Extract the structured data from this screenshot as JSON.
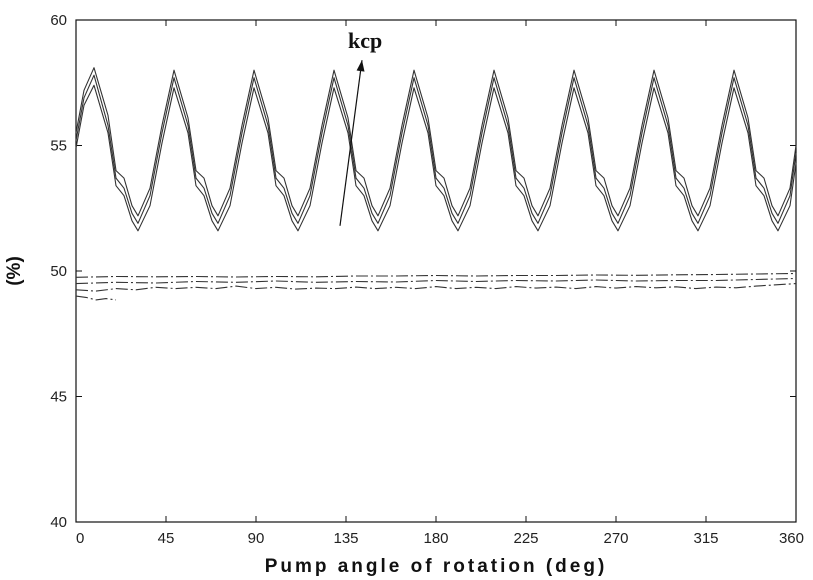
{
  "chart_data": {
    "type": "line",
    "title": "",
    "xlabel": "Pump angle of rotation (deg)",
    "ylabel": "(%)",
    "xlim": [
      0,
      360
    ],
    "ylim": [
      40,
      60
    ],
    "xticks": [
      0,
      45,
      90,
      135,
      180,
      225,
      270,
      315,
      360
    ],
    "yticks": [
      40,
      45,
      50,
      55,
      60
    ],
    "xtick_labels": [
      "0",
      "45",
      "90",
      "135",
      "180",
      "225",
      "270",
      "315",
      "360"
    ],
    "ytick_labels": [
      "40",
      "45",
      "50",
      "55",
      "60"
    ],
    "grid": false,
    "legend": "none",
    "annotation": {
      "text": "kcp",
      "arrow_from": [
        132,
        51.8
      ],
      "arrow_to": [
        143,
        58.4
      ]
    },
    "series": [
      {
        "style": "solid",
        "x": [
          0,
          4,
          9,
          16,
          20,
          24,
          28,
          31,
          37,
          43,
          49,
          56,
          60,
          64,
          68,
          71,
          77,
          83,
          89,
          96,
          100,
          104,
          108,
          111,
          117,
          123,
          129,
          136,
          140,
          144,
          148,
          151,
          157,
          163,
          169,
          176,
          180,
          184,
          188,
          191,
          197,
          203,
          209,
          216,
          220,
          224,
          228,
          231,
          237,
          243,
          249,
          256,
          260,
          264,
          268,
          271,
          277,
          283,
          289,
          296,
          300,
          304,
          308,
          311,
          317,
          323,
          329,
          336,
          340,
          344,
          348,
          351,
          357,
          360
        ],
        "values": [
          55.5,
          57.2,
          58.1,
          56.2,
          54.0,
          53.7,
          52.6,
          52.2,
          53.3,
          55.8,
          58.0,
          56.1,
          54.0,
          53.7,
          52.6,
          52.2,
          53.3,
          55.8,
          58.0,
          56.1,
          54.0,
          53.7,
          52.6,
          52.2,
          53.3,
          55.8,
          58.0,
          56.1,
          54.0,
          53.7,
          52.6,
          52.2,
          53.3,
          55.8,
          58.0,
          56.1,
          54.0,
          53.7,
          52.6,
          52.2,
          53.3,
          55.8,
          58.0,
          56.1,
          54.0,
          53.7,
          52.6,
          52.2,
          53.3,
          55.8,
          58.0,
          56.1,
          54.0,
          53.7,
          52.6,
          52.2,
          53.3,
          55.8,
          58.0,
          56.1,
          54.0,
          53.7,
          52.6,
          52.2,
          53.3,
          55.8,
          58.0,
          56.1,
          54.0,
          53.7,
          52.6,
          52.2,
          53.3,
          55.0
        ]
      },
      {
        "style": "solid",
        "x": [
          0,
          4,
          9,
          16,
          20,
          24,
          28,
          31,
          37,
          43,
          49,
          56,
          60,
          64,
          68,
          71,
          77,
          83,
          89,
          96,
          100,
          104,
          108,
          111,
          117,
          123,
          129,
          136,
          140,
          144,
          148,
          151,
          157,
          163,
          169,
          176,
          180,
          184,
          188,
          191,
          197,
          203,
          209,
          216,
          220,
          224,
          228,
          231,
          237,
          243,
          249,
          256,
          260,
          264,
          268,
          271,
          277,
          283,
          289,
          296,
          300,
          304,
          308,
          311,
          317,
          323,
          329,
          336,
          340,
          344,
          348,
          351,
          357,
          360
        ],
        "values": [
          55.2,
          56.9,
          57.8,
          55.8,
          53.7,
          53.3,
          52.3,
          51.9,
          53.0,
          55.5,
          57.7,
          55.8,
          53.7,
          53.3,
          52.3,
          51.9,
          53.0,
          55.5,
          57.7,
          55.8,
          53.7,
          53.3,
          52.3,
          51.9,
          53.0,
          55.5,
          57.7,
          55.8,
          53.7,
          53.3,
          52.3,
          51.9,
          53.0,
          55.5,
          57.7,
          55.8,
          53.7,
          53.3,
          52.3,
          51.9,
          53.0,
          55.5,
          57.7,
          55.8,
          53.7,
          53.3,
          52.3,
          51.9,
          53.0,
          55.5,
          57.7,
          55.8,
          53.7,
          53.3,
          52.3,
          51.9,
          53.0,
          55.5,
          57.7,
          55.8,
          53.7,
          53.3,
          52.3,
          51.9,
          53.0,
          55.5,
          57.7,
          55.8,
          53.7,
          53.3,
          52.3,
          51.9,
          53.0,
          54.7
        ]
      },
      {
        "style": "solid",
        "x": [
          0,
          4,
          9,
          16,
          20,
          24,
          28,
          31,
          37,
          43,
          49,
          56,
          60,
          64,
          68,
          71,
          77,
          83,
          89,
          96,
          100,
          104,
          108,
          111,
          117,
          123,
          129,
          136,
          140,
          144,
          148,
          151,
          157,
          163,
          169,
          176,
          180,
          184,
          188,
          191,
          197,
          203,
          209,
          216,
          220,
          224,
          228,
          231,
          237,
          243,
          249,
          256,
          260,
          264,
          268,
          271,
          277,
          283,
          289,
          296,
          300,
          304,
          308,
          311,
          317,
          323,
          329,
          336,
          340,
          344,
          348,
          351,
          357,
          360
        ],
        "values": [
          54.9,
          56.6,
          57.4,
          55.5,
          53.4,
          53.0,
          52.0,
          51.6,
          52.6,
          55.1,
          57.3,
          55.5,
          53.4,
          53.0,
          52.0,
          51.6,
          52.6,
          55.1,
          57.3,
          55.5,
          53.4,
          53.0,
          52.0,
          51.6,
          52.6,
          55.1,
          57.3,
          55.5,
          53.4,
          53.0,
          52.0,
          51.6,
          52.6,
          55.1,
          57.3,
          55.5,
          53.4,
          53.0,
          52.0,
          51.6,
          52.6,
          55.1,
          57.3,
          55.5,
          53.4,
          53.0,
          52.0,
          51.6,
          52.6,
          55.1,
          57.3,
          55.5,
          53.4,
          53.0,
          52.0,
          51.6,
          52.6,
          55.1,
          57.3,
          55.5,
          53.4,
          53.0,
          52.0,
          51.6,
          52.6,
          55.1,
          57.3,
          55.5,
          53.4,
          53.0,
          52.0,
          51.6,
          52.6,
          54.3
        ]
      },
      {
        "style": "dash-dot",
        "x": [
          0,
          20,
          40,
          60,
          80,
          100,
          120,
          140,
          160,
          180,
          200,
          220,
          240,
          260,
          280,
          300,
          320,
          340,
          360
        ],
        "values": [
          49.75,
          49.78,
          49.77,
          49.78,
          49.76,
          49.78,
          49.77,
          49.8,
          49.8,
          49.82,
          49.8,
          49.82,
          49.82,
          49.84,
          49.83,
          49.85,
          49.86,
          49.88,
          49.9
        ]
      },
      {
        "style": "dash-dot",
        "x": [
          0,
          20,
          40,
          60,
          80,
          100,
          120,
          140,
          160,
          180,
          200,
          220,
          240,
          260,
          280,
          300,
          320,
          340,
          360
        ],
        "values": [
          49.5,
          49.55,
          49.52,
          49.58,
          49.55,
          49.6,
          49.55,
          49.58,
          49.56,
          49.62,
          49.58,
          49.62,
          49.6,
          49.64,
          49.6,
          49.62,
          49.62,
          49.66,
          49.7
        ]
      },
      {
        "style": "dash-dot",
        "x": [
          0,
          10,
          20,
          30,
          40,
          50,
          60,
          70,
          80,
          90,
          100,
          110,
          120,
          130,
          140,
          150,
          160,
          170,
          180,
          190,
          200,
          210,
          220,
          230,
          240,
          250,
          260,
          270,
          280,
          290,
          300,
          310,
          320,
          330,
          340,
          350,
          360
        ],
        "values": [
          49.25,
          49.2,
          49.3,
          49.25,
          49.35,
          49.3,
          49.35,
          49.3,
          49.4,
          49.3,
          49.35,
          49.28,
          49.32,
          49.3,
          49.36,
          49.3,
          49.35,
          49.3,
          49.38,
          49.3,
          49.35,
          49.3,
          49.38,
          49.32,
          49.36,
          49.3,
          49.38,
          49.32,
          49.38,
          49.33,
          49.37,
          49.3,
          49.36,
          49.33,
          49.4,
          49.45,
          49.5
        ]
      },
      {
        "style": "dash-dot",
        "x": [
          0,
          5,
          10,
          15,
          20
        ],
        "values": [
          49.0,
          48.95,
          48.85,
          48.9,
          48.85
        ]
      }
    ]
  }
}
